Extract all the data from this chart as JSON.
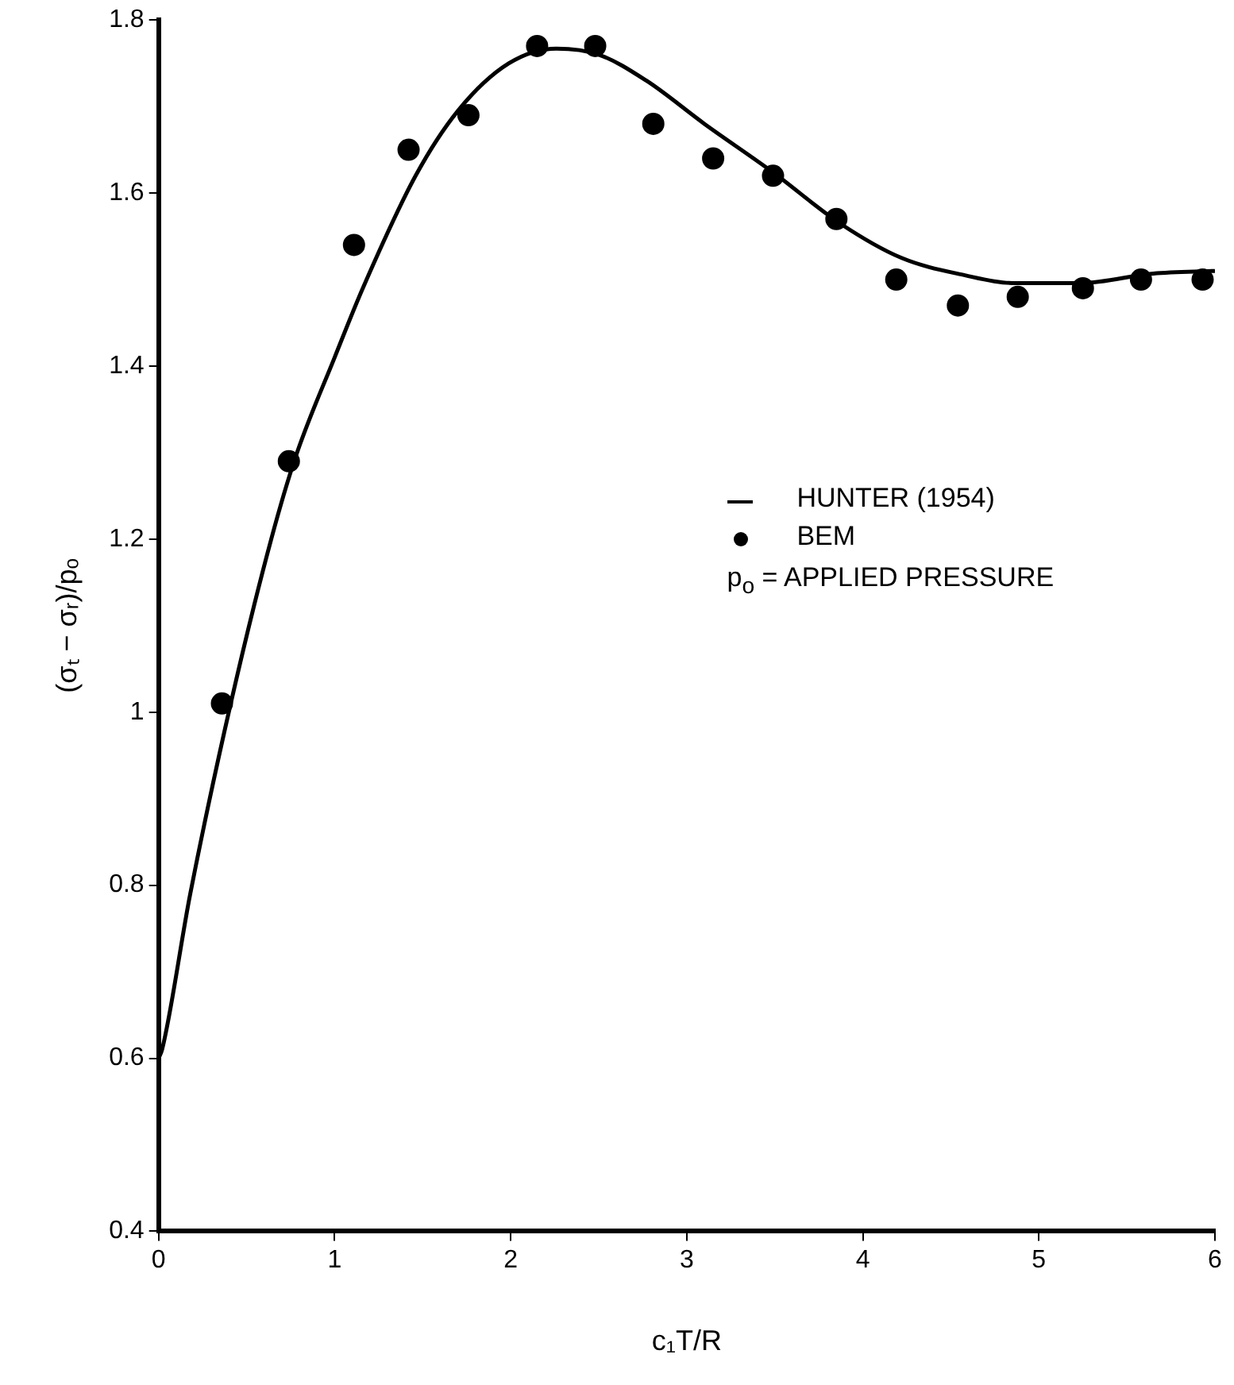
{
  "chart_data": {
    "type": "scatter",
    "xlabel": "c₁T/R",
    "ylabel": "(σₜ − σᵣ)/pₒ",
    "xlim": [
      0,
      6
    ],
    "xticks": [
      0,
      1,
      2,
      3,
      4,
      5,
      6
    ],
    "ylim": [
      0.4,
      1.8
    ],
    "yticks": [
      0.4,
      0.6,
      0.8,
      1.0,
      1.2,
      1.4,
      1.6,
      1.8
    ],
    "grid": false,
    "legend": "right",
    "annotations": [
      "p$_{o}$ = APPLIED PRESSURE"
    ],
    "series": [
      {
        "name": "HUNTER (1954)",
        "type": "line",
        "marker": "none",
        "color": "#000000",
        "x": [
          0,
          0.02,
          0.18,
          0.41,
          0.64,
          0.78,
          1.0,
          1.16,
          1.46,
          1.7,
          1.99,
          2.26,
          2.5,
          2.77,
          3.1,
          3.49,
          3.87,
          4.22,
          4.58,
          4.85,
          5.24,
          5.65,
          6.0
        ],
        "values": [
          0.6,
          0.61,
          0.79,
          1.01,
          1.2,
          1.296,
          1.41,
          1.49,
          1.62,
          1.695,
          1.75,
          1.767,
          1.76,
          1.73,
          1.68,
          1.624,
          1.565,
          1.525,
          1.505,
          1.496,
          1.496,
          1.507,
          1.51
        ]
      },
      {
        "name": "BEM",
        "type": "scatter",
        "marker": "circle",
        "color": "#000000",
        "x": [
          0.36,
          0.74,
          1.11,
          1.42,
          1.76,
          2.15,
          2.48,
          2.81,
          3.15,
          3.49,
          3.85,
          4.19,
          4.54,
          4.88,
          5.25,
          5.58,
          5.93
        ],
        "values": [
          1.01,
          1.29,
          1.54,
          1.65,
          1.69,
          1.77,
          1.77,
          1.68,
          1.64,
          1.62,
          1.57,
          1.5,
          1.47,
          1.48,
          1.49,
          1.5,
          1.5
        ]
      }
    ]
  }
}
